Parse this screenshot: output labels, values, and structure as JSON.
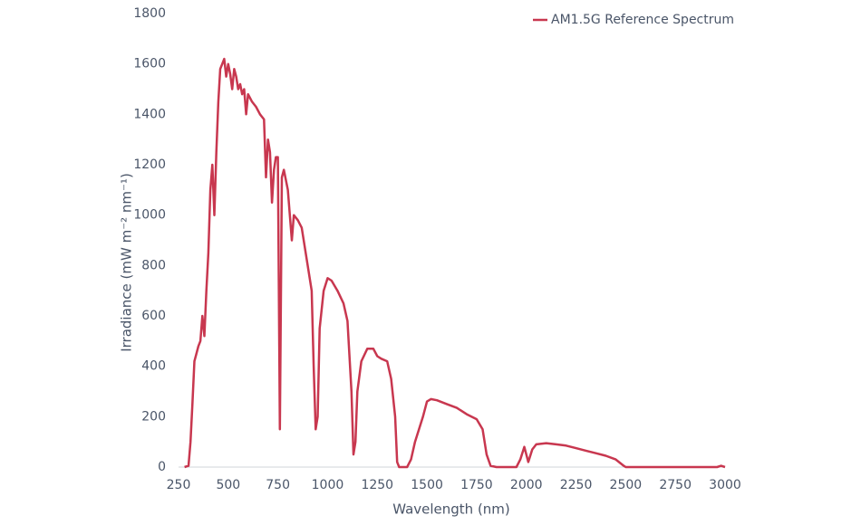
{
  "chart_data": {
    "type": "line",
    "xlabel": "Wavelength (nm)",
    "ylabel": "Irradiance (mW m⁻² nm⁻¹)",
    "legend": "upper right",
    "xlim": [
      250,
      3000
    ],
    "xticks": [
      250,
      500,
      750,
      1000,
      1250,
      1500,
      1750,
      2000,
      2250,
      2500,
      2750,
      3000
    ],
    "ylim": [
      0,
      1800
    ],
    "yticks": [
      0,
      200,
      400,
      600,
      800,
      1000,
      1200,
      1400,
      1600,
      1800
    ],
    "x": [
      280,
      300,
      310,
      320,
      330,
      340,
      350,
      360,
      370,
      380,
      390,
      400,
      410,
      420,
      430,
      440,
      450,
      460,
      470,
      480,
      490,
      500,
      510,
      520,
      530,
      540,
      550,
      560,
      570,
      580,
      590,
      600,
      620,
      640,
      660,
      680,
      690,
      700,
      710,
      720,
      730,
      740,
      750,
      760,
      770,
      780,
      800,
      820,
      830,
      850,
      870,
      900,
      920,
      930,
      940,
      950,
      960,
      980,
      1000,
      1020,
      1050,
      1080,
      1100,
      1120,
      1130,
      1140,
      1150,
      1170,
      1200,
      1230,
      1250,
      1270,
      1300,
      1320,
      1340,
      1350,
      1360,
      1400,
      1420,
      1440,
      1460,
      1480,
      1500,
      1520,
      1550,
      1600,
      1650,
      1700,
      1750,
      1780,
      1800,
      1820,
      1850,
      1950,
      1970,
      1990,
      2010,
      2030,
      2050,
      2100,
      2150,
      2200,
      2250,
      2300,
      2350,
      2400,
      2450,
      2490,
      2500,
      2960,
      2980,
      3000
    ],
    "series": [
      {
        "name": "AM1.5G Reference Spectrum",
        "color": "#c8374f",
        "values": [
          0,
          5,
          100,
          250,
          420,
          450,
          480,
          500,
          600,
          520,
          700,
          850,
          1100,
          1200,
          1000,
          1250,
          1450,
          1580,
          1600,
          1620,
          1550,
          1600,
          1560,
          1500,
          1580,
          1550,
          1500,
          1520,
          1480,
          1500,
          1400,
          1480,
          1450,
          1430,
          1400,
          1380,
          1150,
          1300,
          1250,
          1050,
          1180,
          1230,
          1230,
          150,
          1150,
          1180,
          1100,
          900,
          1000,
          980,
          950,
          800,
          700,
          400,
          150,
          200,
          550,
          700,
          750,
          740,
          700,
          650,
          580,
          300,
          50,
          100,
          300,
          420,
          470,
          470,
          440,
          430,
          420,
          350,
          200,
          20,
          0,
          0,
          30,
          100,
          150,
          200,
          260,
          270,
          265,
          250,
          235,
          210,
          190,
          150,
          50,
          5,
          0,
          0,
          30,
          80,
          20,
          70,
          90,
          95,
          90,
          85,
          75,
          65,
          55,
          45,
          30,
          5,
          0,
          0,
          5,
          0
        ]
      }
    ]
  }
}
